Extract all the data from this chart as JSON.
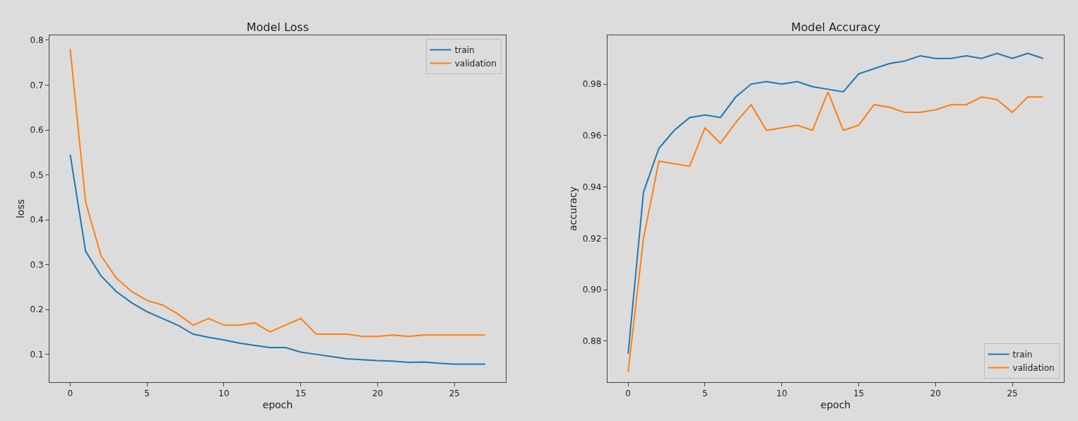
{
  "chart_data": [
    {
      "type": "line",
      "title": "Model Loss",
      "xlabel": "epoch",
      "ylabel": "loss",
      "x": [
        0,
        1,
        2,
        3,
        4,
        5,
        6,
        7,
        8,
        9,
        10,
        11,
        12,
        13,
        14,
        15,
        16,
        17,
        18,
        19,
        20,
        21,
        22,
        23,
        24,
        25,
        26,
        27
      ],
      "series": [
        {
          "name": "train",
          "color": "#1f77b4",
          "values": [
            0.545,
            0.33,
            0.275,
            0.24,
            0.215,
            0.195,
            0.18,
            0.165,
            0.145,
            0.138,
            0.132,
            0.125,
            0.12,
            0.115,
            0.115,
            0.105,
            0.1,
            0.095,
            0.09,
            0.088,
            0.086,
            0.085,
            0.082,
            0.083,
            0.08,
            0.078,
            0.078,
            0.078
          ]
        },
        {
          "name": "validation",
          "color": "#ff7f0e",
          "values": [
            0.78,
            0.44,
            0.32,
            0.27,
            0.24,
            0.22,
            0.21,
            0.19,
            0.165,
            0.18,
            0.165,
            0.165,
            0.17,
            0.15,
            0.165,
            0.18,
            0.145,
            0.145,
            0.145,
            0.14,
            0.14,
            0.143,
            0.14,
            0.143,
            0.143,
            0.143,
            0.143,
            0.143
          ]
        }
      ],
      "xlim": [
        -1.35,
        28.35
      ],
      "xticks": [
        0,
        5,
        10,
        15,
        20,
        25
      ],
      "ylim": [
        0.038,
        0.811
      ],
      "yticks": [
        0.1,
        0.2,
        0.3,
        0.4,
        0.5,
        0.6,
        0.7,
        0.8
      ],
      "grid": false,
      "legend": "top right"
    },
    {
      "type": "line",
      "title": "Model Accuracy",
      "xlabel": "epoch",
      "ylabel": "accuracy",
      "x": [
        0,
        1,
        2,
        3,
        4,
        5,
        6,
        7,
        8,
        9,
        10,
        11,
        12,
        13,
        14,
        15,
        16,
        17,
        18,
        19,
        20,
        21,
        22,
        23,
        24,
        25,
        26,
        27
      ],
      "series": [
        {
          "name": "train",
          "color": "#1f77b4",
          "values": [
            0.875,
            0.938,
            0.955,
            0.962,
            0.967,
            0.968,
            0.967,
            0.975,
            0.98,
            0.981,
            0.98,
            0.981,
            0.979,
            0.978,
            0.977,
            0.984,
            0.986,
            0.988,
            0.989,
            0.991,
            0.99,
            0.99,
            0.991,
            0.99,
            0.992,
            0.99,
            0.992,
            0.99
          ]
        },
        {
          "name": "validation",
          "color": "#ff7f0e",
          "values": [
            0.868,
            0.92,
            0.95,
            0.949,
            0.948,
            0.963,
            0.957,
            0.965,
            0.972,
            0.962,
            0.963,
            0.964,
            0.962,
            0.977,
            0.962,
            0.964,
            0.972,
            0.971,
            0.969,
            0.969,
            0.97,
            0.972,
            0.972,
            0.975,
            0.974,
            0.969,
            0.975,
            0.975
          ]
        }
      ],
      "xlim": [
        -1.35,
        28.35
      ],
      "xticks": [
        0,
        5,
        10,
        15,
        20,
        25
      ],
      "ylim": [
        0.864,
        0.999
      ],
      "yticks": [
        {
          "value": 0.88,
          "label": "0.88"
        },
        {
          "value": 0.9,
          "label": "0.90"
        },
        {
          "value": 0.92,
          "label": "0.92"
        },
        {
          "value": 0.94,
          "label": "0.94"
        },
        {
          "value": 0.96,
          "label": "0.96"
        },
        {
          "value": 0.98,
          "label": "0.98"
        }
      ],
      "grid": false,
      "legend": "bottom right"
    }
  ]
}
